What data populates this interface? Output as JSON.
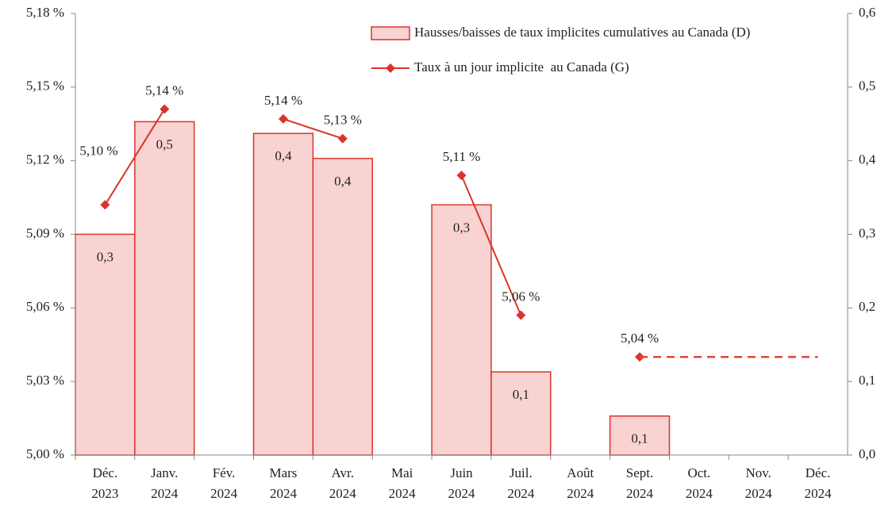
{
  "chart_data": {
    "type": "bar-line",
    "categories": [
      "Déc. 2023",
      "Janv. 2024",
      "Fév. 2024",
      "Mars 2024",
      "Avr. 2024",
      "Mai 2024",
      "Juin 2024",
      "Juil. 2024",
      "Août 2024",
      "Sept. 2024",
      "Oct. 2024",
      "Nov. 2024",
      "Déc. 2024"
    ],
    "ylim": [
      5.0,
      5.18
    ],
    "yticks": [
      {
        "value": 5.0,
        "label": "5,00 %"
      },
      {
        "value": 5.03,
        "label": "5,03 %"
      },
      {
        "value": 5.06,
        "label": "5,06 %"
      },
      {
        "value": 5.09,
        "label": "5,09 %"
      },
      {
        "value": 5.12,
        "label": "5,12 %"
      },
      {
        "value": 5.15,
        "label": "5,15 %"
      },
      {
        "value": 5.18,
        "label": "5,18 %"
      }
    ],
    "y2lim": [
      0,
      0.6
    ],
    "y2ticks": [
      {
        "value": 0,
        "label": "0,0"
      },
      {
        "value": 0.1,
        "label": "0,1"
      },
      {
        "value": 0.2,
        "label": "0,2"
      },
      {
        "value": 0.3,
        "label": "0,3"
      },
      {
        "value": 0.4,
        "label": "0,4"
      },
      {
        "value": 0.5,
        "label": "0,5"
      },
      {
        "value": 0.6,
        "label": "0,6"
      }
    ],
    "legend": "top-right",
    "series": [
      {
        "name": "Hausses/baisses de taux implicites cumulatives au Canada (D)",
        "type": "bar",
        "axis": "y2",
        "color": "#f9d2d2",
        "stroke": "#d9342b",
        "values": [
          0.3,
          0.453,
          null,
          0.437,
          0.403,
          null,
          0.34,
          0.113,
          null,
          0.053,
          null,
          null,
          null
        ],
        "value_labels": [
          "0,3",
          "0,5",
          null,
          "0,4",
          "0,4",
          null,
          "0,3",
          "0,1",
          null,
          "0,1",
          null,
          null,
          null
        ]
      },
      {
        "name": "Taux à un jour implicite  au Canada (G)",
        "type": "line",
        "axis": "y",
        "color": "#d9342b",
        "values": [
          5.102,
          5.141,
          null,
          5.137,
          5.129,
          null,
          5.114,
          5.057,
          null,
          5.04,
          null,
          null,
          null
        ],
        "value_labels": [
          "5,10 %",
          "5,14 %",
          null,
          "5,14 %",
          "5,13 %",
          null,
          "5,11 %",
          "5,06 %",
          null,
          "5,04 %",
          null,
          null,
          null
        ]
      },
      {
        "type": "line",
        "axis": "y",
        "color": "#e0463c",
        "dashed": true,
        "values": [
          null,
          null,
          null,
          null,
          null,
          null,
          null,
          null,
          null,
          5.04,
          5.04,
          5.04,
          5.04
        ]
      }
    ]
  }
}
